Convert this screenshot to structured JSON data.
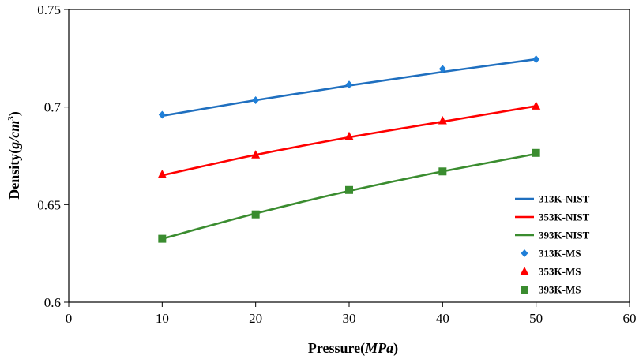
{
  "chart_data": {
    "type": "line",
    "x_axis": {
      "title": "Pressure",
      "title_unit": "MPa",
      "min": 0,
      "max": 60,
      "ticks": [
        0,
        10,
        20,
        30,
        40,
        50,
        60
      ],
      "tick_labels": [
        "0",
        "10",
        "20",
        "30",
        "40",
        "50",
        "60"
      ]
    },
    "y_axis": {
      "title": "Density",
      "title_unit": "g/cm",
      "title_unit_exponent": "3",
      "min": 0.6,
      "max": 0.75,
      "ticks": [
        0.6,
        0.65,
        0.7,
        0.75
      ],
      "tick_labels": [
        "0.6",
        "0.65",
        "0.7",
        "0.75"
      ]
    },
    "grid": false,
    "legend_position": "right",
    "series": [
      {
        "name": "313K-NIST",
        "kind": "line",
        "color": "#1f6fbf",
        "x": [
          10,
          20,
          30,
          40,
          50
        ],
        "y": [
          0.6955,
          0.7035,
          0.711,
          0.718,
          0.7245
        ]
      },
      {
        "name": "353K-NIST",
        "kind": "line",
        "color": "#ff0000",
        "x": [
          10,
          20,
          30,
          40,
          50
        ],
        "y": [
          0.665,
          0.6755,
          0.6845,
          0.6925,
          0.7005
        ]
      },
      {
        "name": "393K-NIST",
        "kind": "line",
        "color": "#3a8c2f",
        "x": [
          10,
          20,
          30,
          40,
          50
        ],
        "y": [
          0.6325,
          0.6455,
          0.657,
          0.667,
          0.676
        ]
      },
      {
        "name": "313K-MS",
        "kind": "marker",
        "marker": "diamond",
        "color": "#1f7fd8",
        "x": [
          10,
          20,
          30,
          40,
          50
        ],
        "y": [
          0.696,
          0.7035,
          0.7115,
          0.7195,
          0.7245
        ]
      },
      {
        "name": "353K-MS",
        "kind": "marker",
        "marker": "triangle",
        "color": "#ff0000",
        "x": [
          10,
          20,
          30,
          40,
          50
        ],
        "y": [
          0.6655,
          0.6755,
          0.685,
          0.693,
          0.7005
        ]
      },
      {
        "name": "393K-MS",
        "kind": "marker",
        "marker": "square",
        "color": "#3a8c2f",
        "x": [
          10,
          20,
          30,
          40,
          50
        ],
        "y": [
          0.6325,
          0.645,
          0.6575,
          0.667,
          0.6765
        ]
      }
    ]
  }
}
